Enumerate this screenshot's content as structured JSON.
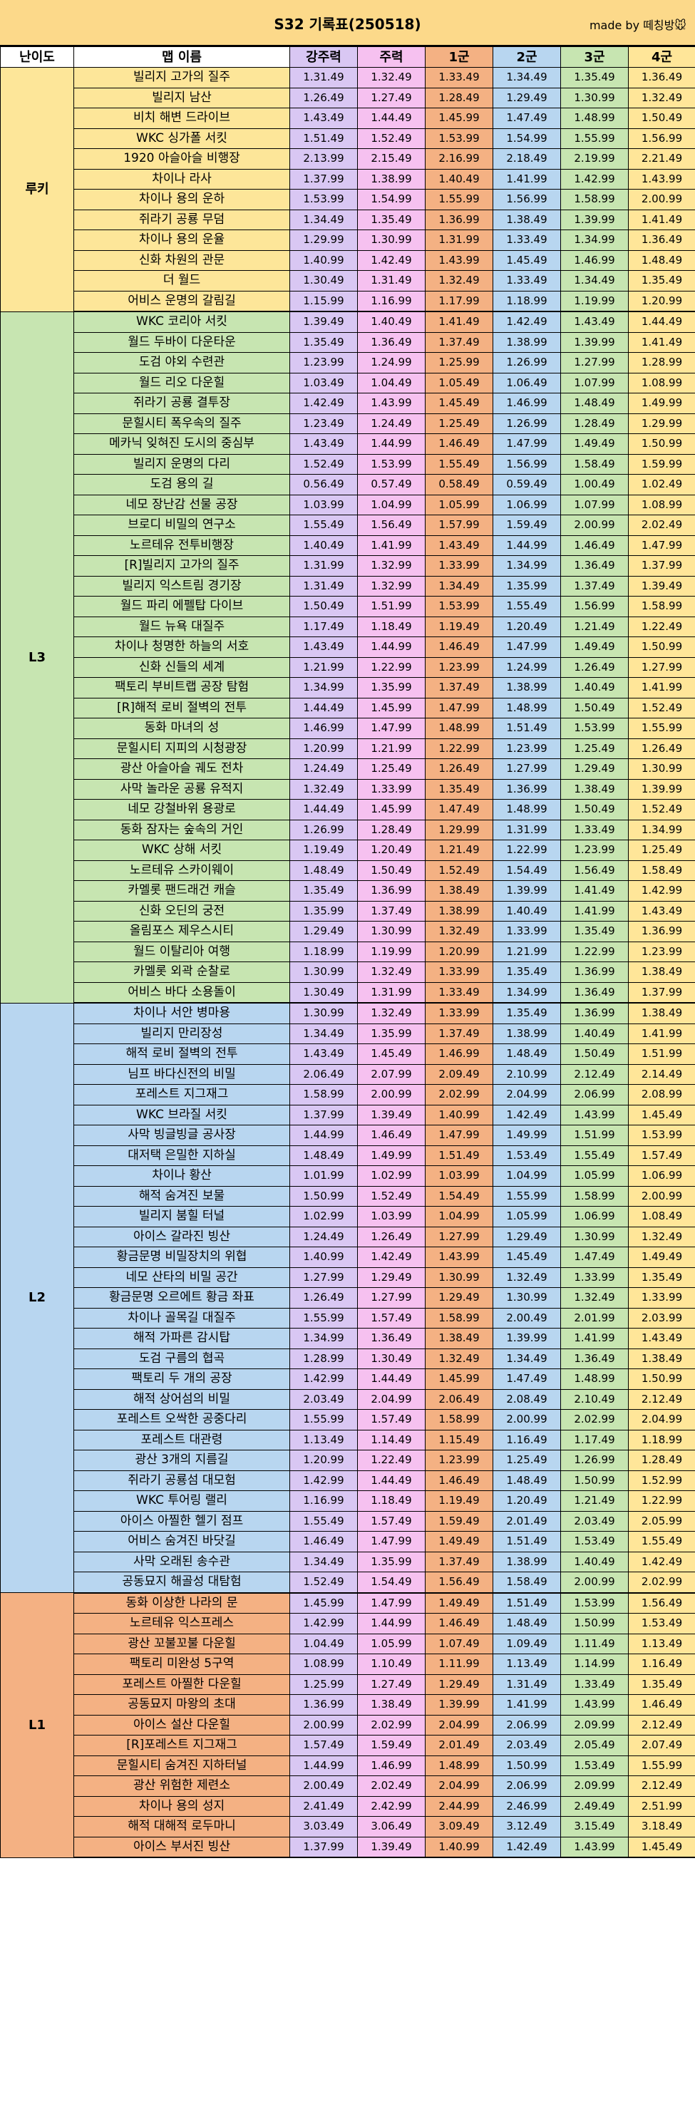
{
  "title": "S32 기록표(250518)",
  "credit": "made by 떼칭방🐭",
  "columns": [
    "난이도",
    "맵 이름",
    "강주력",
    "주력",
    "1군",
    "2군",
    "3군",
    "4군"
  ],
  "colors": {
    "루키": "#fde699",
    "L3": "#c7e5b1",
    "L2": "#b8d6f0",
    "L1": "#f4b183"
  },
  "groups": [
    {
      "level": "루키",
      "rows": [
        [
          "빌리지 고가의 질주",
          "1.31.49",
          "1.32.49",
          "1.33.49",
          "1.34.49",
          "1.35.49",
          "1.36.49"
        ],
        [
          "빌리지 남산",
          "1.26.49",
          "1.27.49",
          "1.28.49",
          "1.29.49",
          "1.30.99",
          "1.32.49"
        ],
        [
          "비치 해변 드라이브",
          "1.43.49",
          "1.44.49",
          "1.45.99",
          "1.47.49",
          "1.48.99",
          "1.50.49"
        ],
        [
          "WKC 싱가폴 서킷",
          "1.51.49",
          "1.52.49",
          "1.53.99",
          "1.54.99",
          "1.55.99",
          "1.56.99"
        ],
        [
          "1920 아슬아슬 비행장",
          "2.13.99",
          "2.15.49",
          "2.16.99",
          "2.18.49",
          "2.19.99",
          "2.21.49"
        ],
        [
          "차이나 라사",
          "1.37.99",
          "1.38.99",
          "1.40.49",
          "1.41.99",
          "1.42.99",
          "1.43.99"
        ],
        [
          "차이나 용의 운하",
          "1.53.99",
          "1.54.99",
          "1.55.99",
          "1.56.99",
          "1.58.99",
          "2.00.99"
        ],
        [
          "쥐라기 공룡 무덤",
          "1.34.49",
          "1.35.49",
          "1.36.99",
          "1.38.49",
          "1.39.99",
          "1.41.49"
        ],
        [
          "차이나 용의 운율",
          "1.29.99",
          "1.30.99",
          "1.31.99",
          "1.33.49",
          "1.34.99",
          "1.36.49"
        ],
        [
          "신화 차원의 관문",
          "1.40.99",
          "1.42.49",
          "1.43.99",
          "1.45.49",
          "1.46.99",
          "1.48.49"
        ],
        [
          "더 월드",
          "1.30.49",
          "1.31.49",
          "1.32.49",
          "1.33.49",
          "1.34.49",
          "1.35.49"
        ],
        [
          "어비스 운명의 갈림길",
          "1.15.99",
          "1.16.99",
          "1.17.99",
          "1.18.99",
          "1.19.99",
          "1.20.99"
        ]
      ]
    },
    {
      "level": "L3",
      "rows": [
        [
          "WKC 코리아 서킷",
          "1.39.49",
          "1.40.49",
          "1.41.49",
          "1.42.49",
          "1.43.49",
          "1.44.49"
        ],
        [
          "월드 두바이 다운타운",
          "1.35.49",
          "1.36.49",
          "1.37.49",
          "1.38.99",
          "1.39.99",
          "1.41.49"
        ],
        [
          "도검 야외 수련관",
          "1.23.99",
          "1.24.99",
          "1.25.99",
          "1.26.99",
          "1.27.99",
          "1.28.99"
        ],
        [
          "월드 리오 다운힐",
          "1.03.49",
          "1.04.49",
          "1.05.49",
          "1.06.49",
          "1.07.99",
          "1.08.99"
        ],
        [
          "쥐라기 공룡 결투장",
          "1.42.49",
          "1.43.99",
          "1.45.49",
          "1.46.99",
          "1.48.49",
          "1.49.99"
        ],
        [
          "문힐시티 폭우속의 질주",
          "1.23.49",
          "1.24.49",
          "1.25.49",
          "1.26.99",
          "1.28.49",
          "1.29.99"
        ],
        [
          "메카닉 잊혀진 도시의 중심부",
          "1.43.49",
          "1.44.99",
          "1.46.49",
          "1.47.99",
          "1.49.49",
          "1.50.99"
        ],
        [
          "빌리지 운명의 다리",
          "1.52.49",
          "1.53.99",
          "1.55.49",
          "1.56.99",
          "1.58.49",
          "1.59.99"
        ],
        [
          "도검 용의 길",
          "0.56.49",
          "0.57.49",
          "0.58.49",
          "0.59.49",
          "1.00.49",
          "1.02.49"
        ],
        [
          "네모 장난감 선물 공장",
          "1.03.99",
          "1.04.99",
          "1.05.99",
          "1.06.99",
          "1.07.99",
          "1.08.99"
        ],
        [
          "브로디 비밀의 연구소",
          "1.55.49",
          "1.56.49",
          "1.57.99",
          "1.59.49",
          "2.00.99",
          "2.02.49"
        ],
        [
          "노르테유 전투비행장",
          "1.40.49",
          "1.41.99",
          "1.43.49",
          "1.44.99",
          "1.46.49",
          "1.47.99"
        ],
        [
          "[R]빌리지 고가의 질주",
          "1.31.99",
          "1.32.99",
          "1.33.99",
          "1.34.99",
          "1.36.49",
          "1.37.99"
        ],
        [
          "빌리지 익스트림 경기장",
          "1.31.49",
          "1.32.99",
          "1.34.49",
          "1.35.99",
          "1.37.49",
          "1.39.49"
        ],
        [
          "월드 파리 에펠탑 다이브",
          "1.50.49",
          "1.51.99",
          "1.53.99",
          "1.55.49",
          "1.56.99",
          "1.58.99"
        ],
        [
          "월드 뉴욕 대질주",
          "1.17.49",
          "1.18.49",
          "1.19.49",
          "1.20.49",
          "1.21.49",
          "1.22.49"
        ],
        [
          "차이나 청명한 하늘의 서호",
          "1.43.49",
          "1.44.99",
          "1.46.49",
          "1.47.99",
          "1.49.49",
          "1.50.99"
        ],
        [
          "신화 신들의 세계",
          "1.21.99",
          "1.22.99",
          "1.23.99",
          "1.24.99",
          "1.26.49",
          "1.27.99"
        ],
        [
          "팩토리 부비트랩 공장 탐험",
          "1.34.99",
          "1.35.99",
          "1.37.49",
          "1.38.99",
          "1.40.49",
          "1.41.99"
        ],
        [
          "[R]해적 로비 절벽의 전투",
          "1.44.49",
          "1.45.99",
          "1.47.99",
          "1.48.99",
          "1.50.49",
          "1.52.49"
        ],
        [
          "동화 마녀의 성",
          "1.46.99",
          "1.47.99",
          "1.48.99",
          "1.51.49",
          "1.53.99",
          "1.55.99"
        ],
        [
          "문힐시티 지피의 시청광장",
          "1.20.99",
          "1.21.99",
          "1.22.99",
          "1.23.99",
          "1.25.49",
          "1.26.49"
        ],
        [
          "광산 아슬아슬 궤도 전차",
          "1.24.49",
          "1.25.49",
          "1.26.49",
          "1.27.99",
          "1.29.49",
          "1.30.99"
        ],
        [
          "사막 놀라운 공룡 유적지",
          "1.32.49",
          "1.33.99",
          "1.35.49",
          "1.36.99",
          "1.38.49",
          "1.39.99"
        ],
        [
          "네모 강철바위 용광로",
          "1.44.49",
          "1.45.99",
          "1.47.49",
          "1.48.99",
          "1.50.49",
          "1.52.49"
        ],
        [
          "동화 잠자는 숲속의 거인",
          "1.26.99",
          "1.28.49",
          "1.29.99",
          "1.31.99",
          "1.33.49",
          "1.34.99"
        ],
        [
          "WKC 상해 서킷",
          "1.19.49",
          "1.20.49",
          "1.21.49",
          "1.22.99",
          "1.23.99",
          "1.25.49"
        ],
        [
          "노르테유 스카이웨이",
          "1.48.49",
          "1.50.49",
          "1.52.49",
          "1.54.49",
          "1.56.49",
          "1.58.49"
        ],
        [
          "카멜롯 팬드래건 캐슬",
          "1.35.49",
          "1.36.99",
          "1.38.49",
          "1.39.99",
          "1.41.49",
          "1.42.99"
        ],
        [
          "신화 오딘의 궁전",
          "1.35.99",
          "1.37.49",
          "1.38.99",
          "1.40.49",
          "1.41.99",
          "1.43.49"
        ],
        [
          "올림포스 제우스시티",
          "1.29.49",
          "1.30.99",
          "1.32.49",
          "1.33.99",
          "1.35.49",
          "1.36.99"
        ],
        [
          "월드 이탈리아 여행",
          "1.18.99",
          "1.19.99",
          "1.20.99",
          "1.21.99",
          "1.22.99",
          "1.23.99"
        ],
        [
          "카멜롯 외곽 순찰로",
          "1.30.99",
          "1.32.49",
          "1.33.99",
          "1.35.49",
          "1.36.99",
          "1.38.49"
        ],
        [
          "어비스 바다 소용돌이",
          "1.30.49",
          "1.31.99",
          "1.33.49",
          "1.34.99",
          "1.36.49",
          "1.37.99"
        ]
      ]
    },
    {
      "level": "L2",
      "rows": [
        [
          "차이나 서안 병마용",
          "1.30.99",
          "1.32.49",
          "1.33.99",
          "1.35.49",
          "1.36.99",
          "1.38.49"
        ],
        [
          "빌리지 만리장성",
          "1.34.49",
          "1.35.99",
          "1.37.49",
          "1.38.99",
          "1.40.49",
          "1.41.99"
        ],
        [
          "해적 로비 절벽의 전투",
          "1.43.49",
          "1.45.49",
          "1.46.99",
          "1.48.49",
          "1.50.49",
          "1.51.99"
        ],
        [
          "님프 바다신전의 비밀",
          "2.06.49",
          "2.07.99",
          "2.09.49",
          "2.10.99",
          "2.12.49",
          "2.14.49"
        ],
        [
          "포레스트 지그재그",
          "1.58.99",
          "2.00.99",
          "2.02.99",
          "2.04.99",
          "2.06.99",
          "2.08.99"
        ],
        [
          "WKC 브라질 서킷",
          "1.37.99",
          "1.39.49",
          "1.40.99",
          "1.42.49",
          "1.43.99",
          "1.45.49"
        ],
        [
          "사막 빙글빙글 공사장",
          "1.44.99",
          "1.46.49",
          "1.47.99",
          "1.49.99",
          "1.51.99",
          "1.53.99"
        ],
        [
          "대저택 은밀한 지하실",
          "1.48.49",
          "1.49.99",
          "1.51.49",
          "1.53.49",
          "1.55.49",
          "1.57.49"
        ],
        [
          "차이나 황산",
          "1.01.99",
          "1.02.99",
          "1.03.99",
          "1.04.99",
          "1.05.99",
          "1.06.99"
        ],
        [
          "해적 숨겨진 보물",
          "1.50.99",
          "1.52.49",
          "1.54.49",
          "1.55.99",
          "1.58.99",
          "2.00.99"
        ],
        [
          "빌리지 붐힐 터널",
          "1.02.99",
          "1.03.99",
          "1.04.99",
          "1.05.99",
          "1.06.99",
          "1.08.49"
        ],
        [
          "아이스 갈라진 빙산",
          "1.24.49",
          "1.26.49",
          "1.27.99",
          "1.29.49",
          "1.30.99",
          "1.32.49"
        ],
        [
          "황금문명 비밀장치의 위협",
          "1.40.99",
          "1.42.49",
          "1.43.99",
          "1.45.49",
          "1.47.49",
          "1.49.49"
        ],
        [
          "네모 산타의 비밀 공간",
          "1.27.99",
          "1.29.49",
          "1.30.99",
          "1.32.49",
          "1.33.99",
          "1.35.49"
        ],
        [
          "황금문명 오르에트 황금 좌표",
          "1.26.49",
          "1.27.99",
          "1.29.49",
          "1.30.99",
          "1.32.49",
          "1.33.99"
        ],
        [
          "차이나 골목길 대질주",
          "1.55.99",
          "1.57.49",
          "1.58.99",
          "2.00.49",
          "2.01.99",
          "2.03.99"
        ],
        [
          "해적 가파른 감시탑",
          "1.34.99",
          "1.36.49",
          "1.38.49",
          "1.39.99",
          "1.41.99",
          "1.43.49"
        ],
        [
          "도검 구름의 협곡",
          "1.28.99",
          "1.30.49",
          "1.32.49",
          "1.34.49",
          "1.36.49",
          "1.38.49"
        ],
        [
          "팩토리 두 개의 공장",
          "1.42.99",
          "1.44.49",
          "1.45.99",
          "1.47.49",
          "1.48.99",
          "1.50.99"
        ],
        [
          "해적 상어섬의 비밀",
          "2.03.49",
          "2.04.99",
          "2.06.49",
          "2.08.49",
          "2.10.49",
          "2.12.49"
        ],
        [
          "포레스트 오싹한 공중다리",
          "1.55.99",
          "1.57.49",
          "1.58.99",
          "2.00.99",
          "2.02.99",
          "2.04.99"
        ],
        [
          "포레스트 대관령",
          "1.13.49",
          "1.14.49",
          "1.15.49",
          "1.16.49",
          "1.17.49",
          "1.18.99"
        ],
        [
          "광산 3개의 지름길",
          "1.20.99",
          "1.22.49",
          "1.23.99",
          "1.25.49",
          "1.26.99",
          "1.28.49"
        ],
        [
          "쥐라기 공룡섬 대모험",
          "1.42.99",
          "1.44.49",
          "1.46.49",
          "1.48.49",
          "1.50.99",
          "1.52.99"
        ],
        [
          "WKC 투어링 랠리",
          "1.16.99",
          "1.18.49",
          "1.19.49",
          "1.20.49",
          "1.21.49",
          "1.22.99"
        ],
        [
          "아이스 아찔한 헬기 점프",
          "1.55.49",
          "1.57.49",
          "1.59.49",
          "2.01.49",
          "2.03.49",
          "2.05.99"
        ],
        [
          "어비스 숨겨진 바닷길",
          "1.46.49",
          "1.47.99",
          "1.49.49",
          "1.51.49",
          "1.53.49",
          "1.55.49"
        ],
        [
          "사막 오래된 송수관",
          "1.34.49",
          "1.35.99",
          "1.37.49",
          "1.38.99",
          "1.40.49",
          "1.42.49"
        ],
        [
          "공동묘지 해골성 대탐험",
          "1.52.49",
          "1.54.49",
          "1.56.49",
          "1.58.49",
          "2.00.99",
          "2.02.99"
        ]
      ]
    },
    {
      "level": "L1",
      "rows": [
        [
          "동화 이상한 나라의 문",
          "1.45.99",
          "1.47.99",
          "1.49.49",
          "1.51.49",
          "1.53.99",
          "1.56.49"
        ],
        [
          "노르테유 익스프레스",
          "1.42.99",
          "1.44.99",
          "1.46.49",
          "1.48.49",
          "1.50.99",
          "1.53.49"
        ],
        [
          "광산 꼬불꼬불 다운힐",
          "1.04.49",
          "1.05.99",
          "1.07.49",
          "1.09.49",
          "1.11.49",
          "1.13.49"
        ],
        [
          "팩토리 미완성 5구역",
          "1.08.99",
          "1.10.49",
          "1.11.99",
          "1.13.49",
          "1.14.99",
          "1.16.49"
        ],
        [
          "포레스트 아찔한 다운힐",
          "1.25.99",
          "1.27.49",
          "1.29.49",
          "1.31.49",
          "1.33.49",
          "1.35.49"
        ],
        [
          "공동묘지 마왕의 초대",
          "1.36.99",
          "1.38.49",
          "1.39.99",
          "1.41.99",
          "1.43.99",
          "1.46.49"
        ],
        [
          "아이스 설산 다운힐",
          "2.00.99",
          "2.02.99",
          "2.04.99",
          "2.06.99",
          "2.09.99",
          "2.12.49"
        ],
        [
          "[R]포레스트 지그재그",
          "1.57.49",
          "1.59.49",
          "2.01.49",
          "2.03.49",
          "2.05.49",
          "2.07.49"
        ],
        [
          "문힐시티 숨겨진 지하터널",
          "1.44.99",
          "1.46.99",
          "1.48.99",
          "1.50.99",
          "1.53.49",
          "1.55.99"
        ],
        [
          "광산 위험한 제련소",
          "2.00.49",
          "2.02.49",
          "2.04.99",
          "2.06.99",
          "2.09.99",
          "2.12.49"
        ],
        [
          "차이나 용의 성지",
          "2.41.49",
          "2.42.99",
          "2.44.99",
          "2.46.99",
          "2.49.49",
          "2.51.99"
        ],
        [
          "해적 대해적 로두마니",
          "3.03.49",
          "3.06.49",
          "3.09.49",
          "3.12.49",
          "3.15.49",
          "3.18.49"
        ],
        [
          "아이스 부서진 빙산",
          "1.37.99",
          "1.39.49",
          "1.40.99",
          "1.42.49",
          "1.43.99",
          "1.45.49"
        ]
      ]
    }
  ]
}
